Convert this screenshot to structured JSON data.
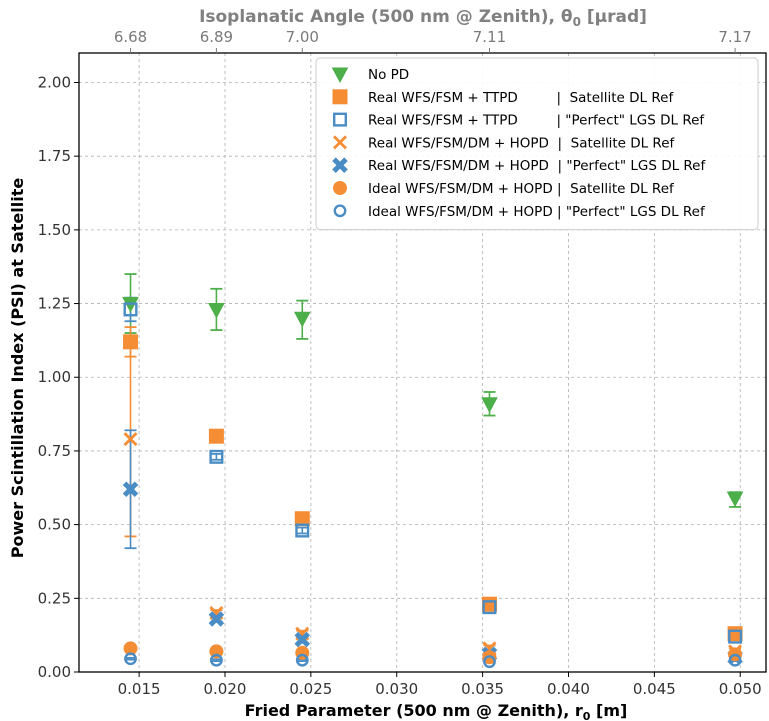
{
  "chart_data": {
    "type": "scatter",
    "xlabel": "Fried Parameter (500 nm @ Zenith), r",
    "xlabel_sub": "0",
    "xlabel_unit": " [m]",
    "ylabel": "Power Scintillation Index (PSI) at Satellite",
    "top_xlabel": "Isoplanatic Angle (500 nm @ Zenith), θ",
    "top_xlabel_sub": "0",
    "top_xlabel_unit": " [μrad]",
    "xlim": [
      0.0115,
      0.0515
    ],
    "ylim": [
      0.0,
      2.1
    ],
    "xticks": [
      0.015,
      0.02,
      0.025,
      0.03,
      0.035,
      0.04,
      0.045,
      0.05
    ],
    "xtick_labels": [
      "0.015",
      "0.020",
      "0.025",
      "0.030",
      "0.035",
      "0.040",
      "0.045",
      "0.050"
    ],
    "yticks": [
      0.0,
      0.25,
      0.5,
      0.75,
      1.0,
      1.25,
      1.5,
      1.75,
      2.0
    ],
    "ytick_labels": [
      "0.00",
      "0.25",
      "0.50",
      "0.75",
      "1.00",
      "1.25",
      "1.50",
      "1.75",
      "2.00"
    ],
    "top_ticks": [
      0.0145,
      0.0195,
      0.0245,
      0.0354,
      0.0497
    ],
    "top_tick_labels": [
      "6.68",
      "6.89",
      "7.00",
      "7.11",
      "7.17"
    ],
    "grid": true,
    "legend_position": "top-right",
    "colors": {
      "green": "#4daf4a",
      "orange": "#f58d35",
      "blue": "#4a8cc4"
    },
    "series": [
      {
        "name": "No PD",
        "marker": "triangle-down",
        "color": "#4daf4a",
        "x": [
          0.0145,
          0.0195,
          0.0245,
          0.0354,
          0.0497
        ],
        "y": [
          1.25,
          1.23,
          1.2,
          0.91,
          0.59
        ],
        "err_low": [
          1.15,
          1.16,
          1.13,
          0.87,
          0.56
        ],
        "err_high": [
          1.35,
          1.3,
          1.26,
          0.95,
          0.61
        ]
      },
      {
        "name": "Real WFS/FSM + TTPD         |  Satellite DL Ref",
        "marker": "square-filled",
        "color": "#f58d35",
        "x": [
          0.0145,
          0.0195,
          0.0245,
          0.0354,
          0.0497
        ],
        "y": [
          1.12,
          0.8,
          0.52,
          0.23,
          0.13
        ],
        "err_low": [
          1.07,
          0.78,
          0.5,
          0.22,
          0.12
        ],
        "err_high": [
          1.17,
          0.82,
          0.53,
          0.24,
          0.14
        ]
      },
      {
        "name": "Real WFS/FSM + TTPD         | \"Perfect\" LGS DL Ref",
        "marker": "square-open",
        "color": "#4a8cc4",
        "x": [
          0.0145,
          0.0195,
          0.0245,
          0.0354,
          0.0497
        ],
        "y": [
          1.23,
          0.73,
          0.48,
          0.22,
          0.12
        ],
        "err_low": [
          1.19,
          0.72,
          0.47,
          0.21,
          0.11
        ],
        "err_high": [
          1.27,
          0.74,
          0.49,
          0.23,
          0.13
        ]
      },
      {
        "name": "Real WFS/FSM/DM + HOPD  |  Satellite DL Ref",
        "marker": "x",
        "color": "#f58d35",
        "x": [
          0.0145,
          0.0195,
          0.0245,
          0.0354,
          0.0497
        ],
        "y": [
          0.79,
          0.2,
          0.13,
          0.08,
          0.07
        ],
        "err_low": [
          0.46,
          0.19,
          0.12,
          0.07,
          0.06
        ],
        "err_high": [
          1.13,
          0.21,
          0.14,
          0.09,
          0.08
        ]
      },
      {
        "name": "Real WFS/FSM/DM + HOPD  | \"Perfect\" LGS DL Ref",
        "marker": "x-filled",
        "color": "#4a8cc4",
        "x": [
          0.0145,
          0.0195,
          0.0245,
          0.0354,
          0.0497
        ],
        "y": [
          0.62,
          0.18,
          0.11,
          0.06,
          0.05
        ],
        "err_low": [
          0.42,
          0.17,
          0.1,
          0.055,
          0.045
        ],
        "err_high": [
          0.82,
          0.19,
          0.12,
          0.065,
          0.055
        ]
      },
      {
        "name": "Ideal WFS/FSM/DM + HOPD |  Satellite DL Ref",
        "marker": "circle-filled",
        "color": "#f58d35",
        "x": [
          0.0145,
          0.0195,
          0.0245,
          0.0354,
          0.0497
        ],
        "y": [
          0.08,
          0.07,
          0.065,
          0.05,
          0.06
        ],
        "err_low": [
          0.075,
          0.065,
          0.06,
          0.045,
          0.055
        ],
        "err_high": [
          0.085,
          0.075,
          0.07,
          0.055,
          0.065
        ]
      },
      {
        "name": "Ideal WFS/FSM/DM + HOPD | \"Perfect\" LGS DL Ref",
        "marker": "circle-open",
        "color": "#4a8cc4",
        "x": [
          0.0145,
          0.0195,
          0.0245,
          0.0354,
          0.0497
        ],
        "y": [
          0.045,
          0.04,
          0.04,
          0.035,
          0.04
        ],
        "err_low": [
          0.042,
          0.037,
          0.037,
          0.032,
          0.037
        ],
        "err_high": [
          0.048,
          0.043,
          0.043,
          0.038,
          0.043
        ]
      }
    ]
  }
}
